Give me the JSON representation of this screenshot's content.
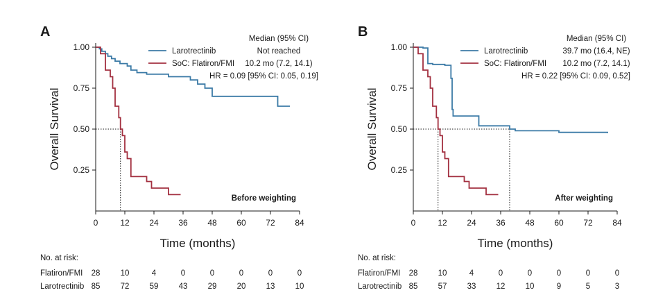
{
  "colors": {
    "larotrectinib": "#3b7aa6",
    "soc": "#a33040",
    "axis": "#1a1a1a"
  },
  "chart_data": [
    {
      "panel": "A",
      "type": "line",
      "ylabel": "Overall Survival",
      "xlabel": "Time (months)",
      "xlim": [
        0,
        84
      ],
      "ylim": [
        0,
        1
      ],
      "xticks": [
        "0",
        "12",
        "24",
        "36",
        "48",
        "60",
        "72",
        "84"
      ],
      "yticks": [
        "1.00",
        "0.75",
        "0.50",
        "0.25"
      ],
      "legend_header": "Median (95% CI)",
      "legend": [
        {
          "name": "Larotrectinib",
          "median": "Not reached",
          "color_key": "larotrectinib"
        },
        {
          "name": "SoC: Flatiron/FMI",
          "median": "10.2 mo (7.2, 14.1)",
          "color_key": "soc"
        }
      ],
      "hr_text": "HR = 0.09 [95% CI: 0.05, 0.19]",
      "annotation": "Before weighting",
      "median_reference": {
        "y": 0.5,
        "x_values": [
          10.2
        ]
      },
      "series": [
        {
          "name": "Larotrectinib",
          "color_key": "larotrectinib",
          "x": [
            0,
            1.5,
            2.5,
            4,
            5,
            6.5,
            8,
            10,
            13,
            14.5,
            17,
            21,
            30,
            39,
            42,
            45,
            48,
            75,
            80
          ],
          "y": [
            1.0,
            0.99,
            0.975,
            0.96,
            0.945,
            0.93,
            0.915,
            0.9,
            0.885,
            0.86,
            0.845,
            0.835,
            0.82,
            0.8,
            0.775,
            0.75,
            0.7,
            0.64,
            0.64
          ]
        },
        {
          "name": "SoC: Flatiron/FMI",
          "color_key": "soc",
          "x": [
            0,
            2,
            4,
            6,
            7,
            8,
            9.5,
            10.2,
            11,
            12,
            13,
            14.5,
            21,
            23,
            30,
            35
          ],
          "y": [
            1.0,
            0.96,
            0.86,
            0.82,
            0.75,
            0.64,
            0.57,
            0.5,
            0.46,
            0.36,
            0.32,
            0.21,
            0.18,
            0.14,
            0.1,
            0.1
          ]
        }
      ],
      "risk_table": {
        "title": "No. at risk:",
        "rows": [
          {
            "label": "Flatiron/FMI",
            "values": [
              "28",
              "10",
              "4",
              "0",
              "0",
              "0",
              "0",
              "0"
            ]
          },
          {
            "label": "Larotrectinib",
            "values": [
              "85",
              "72",
              "59",
              "43",
              "29",
              "20",
              "13",
              "10"
            ]
          }
        ]
      }
    },
    {
      "panel": "B",
      "type": "line",
      "ylabel": "Overall Survival",
      "xlabel": "Time (months)",
      "xlim": [
        0,
        84
      ],
      "ylim": [
        0,
        1
      ],
      "xticks": [
        "0",
        "12",
        "24",
        "36",
        "48",
        "60",
        "72",
        "84"
      ],
      "yticks": [
        "1.00",
        "0.75",
        "0.50",
        "0.25"
      ],
      "legend_header": "Median (95% CI)",
      "legend": [
        {
          "name": "Larotrectinib",
          "median": "39.7 mo (16.4, NE)",
          "color_key": "larotrectinib"
        },
        {
          "name": "SoC: Flatiron/FMI",
          "median": "10.2 mo (7.2, 14.1)",
          "color_key": "soc"
        }
      ],
      "hr_text": "HR = 0.22 [95% CI: 0.09, 0.52]",
      "annotation": "After weighting",
      "median_reference": {
        "y": 0.5,
        "x_values": [
          10.2,
          39.7
        ]
      },
      "series": [
        {
          "name": "Larotrectinib",
          "color_key": "larotrectinib",
          "x": [
            0,
            4,
            6,
            8,
            13,
            15.5,
            16,
            16.4,
            18,
            27,
            39.7,
            42,
            60,
            80
          ],
          "y": [
            1.0,
            0.995,
            0.9,
            0.895,
            0.89,
            0.81,
            0.62,
            0.58,
            0.58,
            0.52,
            0.5,
            0.49,
            0.48,
            0.475
          ]
        },
        {
          "name": "SoC: Flatiron/FMI",
          "color_key": "soc",
          "x": [
            0,
            2,
            4,
            6,
            7,
            8,
            9.5,
            10.2,
            11,
            12,
            13,
            14.5,
            21,
            23,
            30,
            35
          ],
          "y": [
            1.0,
            0.96,
            0.86,
            0.82,
            0.75,
            0.64,
            0.57,
            0.5,
            0.46,
            0.36,
            0.32,
            0.21,
            0.18,
            0.14,
            0.1,
            0.1
          ]
        }
      ],
      "risk_table": {
        "title": "No. at risk:",
        "rows": [
          {
            "label": "Flatiron/FMI",
            "values": [
              "28",
              "10",
              "4",
              "0",
              "0",
              "0",
              "0",
              "0"
            ]
          },
          {
            "label": "Larotrectinib",
            "values": [
              "85",
              "57",
              "33",
              "12",
              "10",
              "9",
              "5",
              "3"
            ]
          }
        ]
      }
    }
  ]
}
